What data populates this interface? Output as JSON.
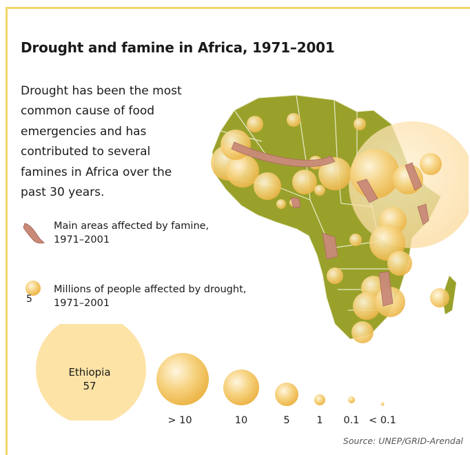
{
  "title": "Drought and famine in Africa, 1971–2001",
  "intro": "Drought has been the most common cause of food emergencies and has contributed to several famines in Africa over the past 30 years.",
  "legend": {
    "famine": "Main areas affected by famine, 1971–2001",
    "drought": "Millions of people affected by drought, 1971–2001",
    "drought_value": "5"
  },
  "ethiopia": {
    "name": "Ethiopia",
    "value": "57"
  },
  "bubble_scale": [
    "> 10",
    "10",
    "5",
    "1",
    "0.1",
    "< 0.1"
  ],
  "source": "Source: UNEP/GRID-Arendal",
  "colors": {
    "frame": "#f3d66a",
    "land": "#9aa12b",
    "border": "#e8ecc9",
    "bubble": "#f4c963",
    "bubble_light": "#fde3a6",
    "famine": "#c98a78"
  }
}
